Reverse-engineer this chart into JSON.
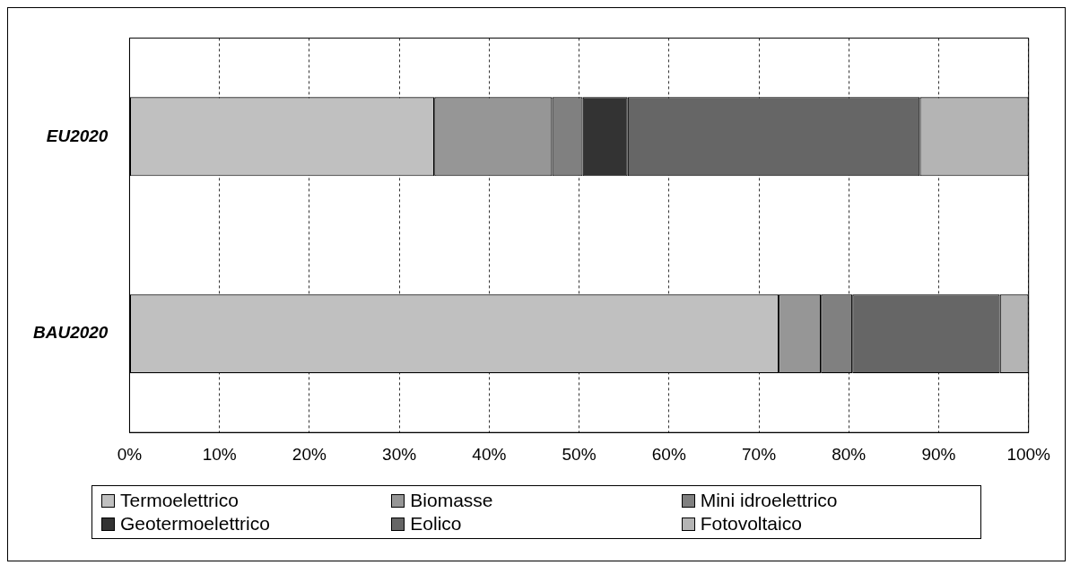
{
  "chart_data": {
    "type": "bar",
    "orientation": "horizontal",
    "stacked": true,
    "categories": [
      "EU2020",
      "BAU2020"
    ],
    "series": [
      {
        "name": "Termoelettrico",
        "color": "#c0c0c0",
        "values": [
          33.9,
          72.2
        ]
      },
      {
        "name": "Biomasse",
        "color": "#969696",
        "values": [
          13.1,
          4.7
        ]
      },
      {
        "name": "Mini idroelettrico",
        "color": "#808080",
        "values": [
          3.4,
          3.5
        ]
      },
      {
        "name": "Geotermoelettrico",
        "color": "#333333",
        "values": [
          5.0,
          0
        ]
      },
      {
        "name": "Eolico",
        "color": "#666666",
        "values": [
          32.5,
          16.4
        ]
      },
      {
        "name": "Fotovoltaico",
        "color": "#b4b4b4",
        "values": [
          12.1,
          3.2
        ]
      }
    ],
    "xlim": [
      0,
      100
    ],
    "xticks": [
      {
        "value": 0,
        "label": "0%"
      },
      {
        "value": 10,
        "label": "10%"
      },
      {
        "value": 20,
        "label": "20%"
      },
      {
        "value": 30,
        "label": "30%"
      },
      {
        "value": 40,
        "label": "40%"
      },
      {
        "value": 50,
        "label": "50%"
      },
      {
        "value": 60,
        "label": "60%"
      },
      {
        "value": 70,
        "label": "70%"
      },
      {
        "value": 80,
        "label": "80%"
      },
      {
        "value": 90,
        "label": "90%"
      },
      {
        "value": 100,
        "label": "100%"
      }
    ],
    "grid": "x",
    "legend": "bottom"
  }
}
